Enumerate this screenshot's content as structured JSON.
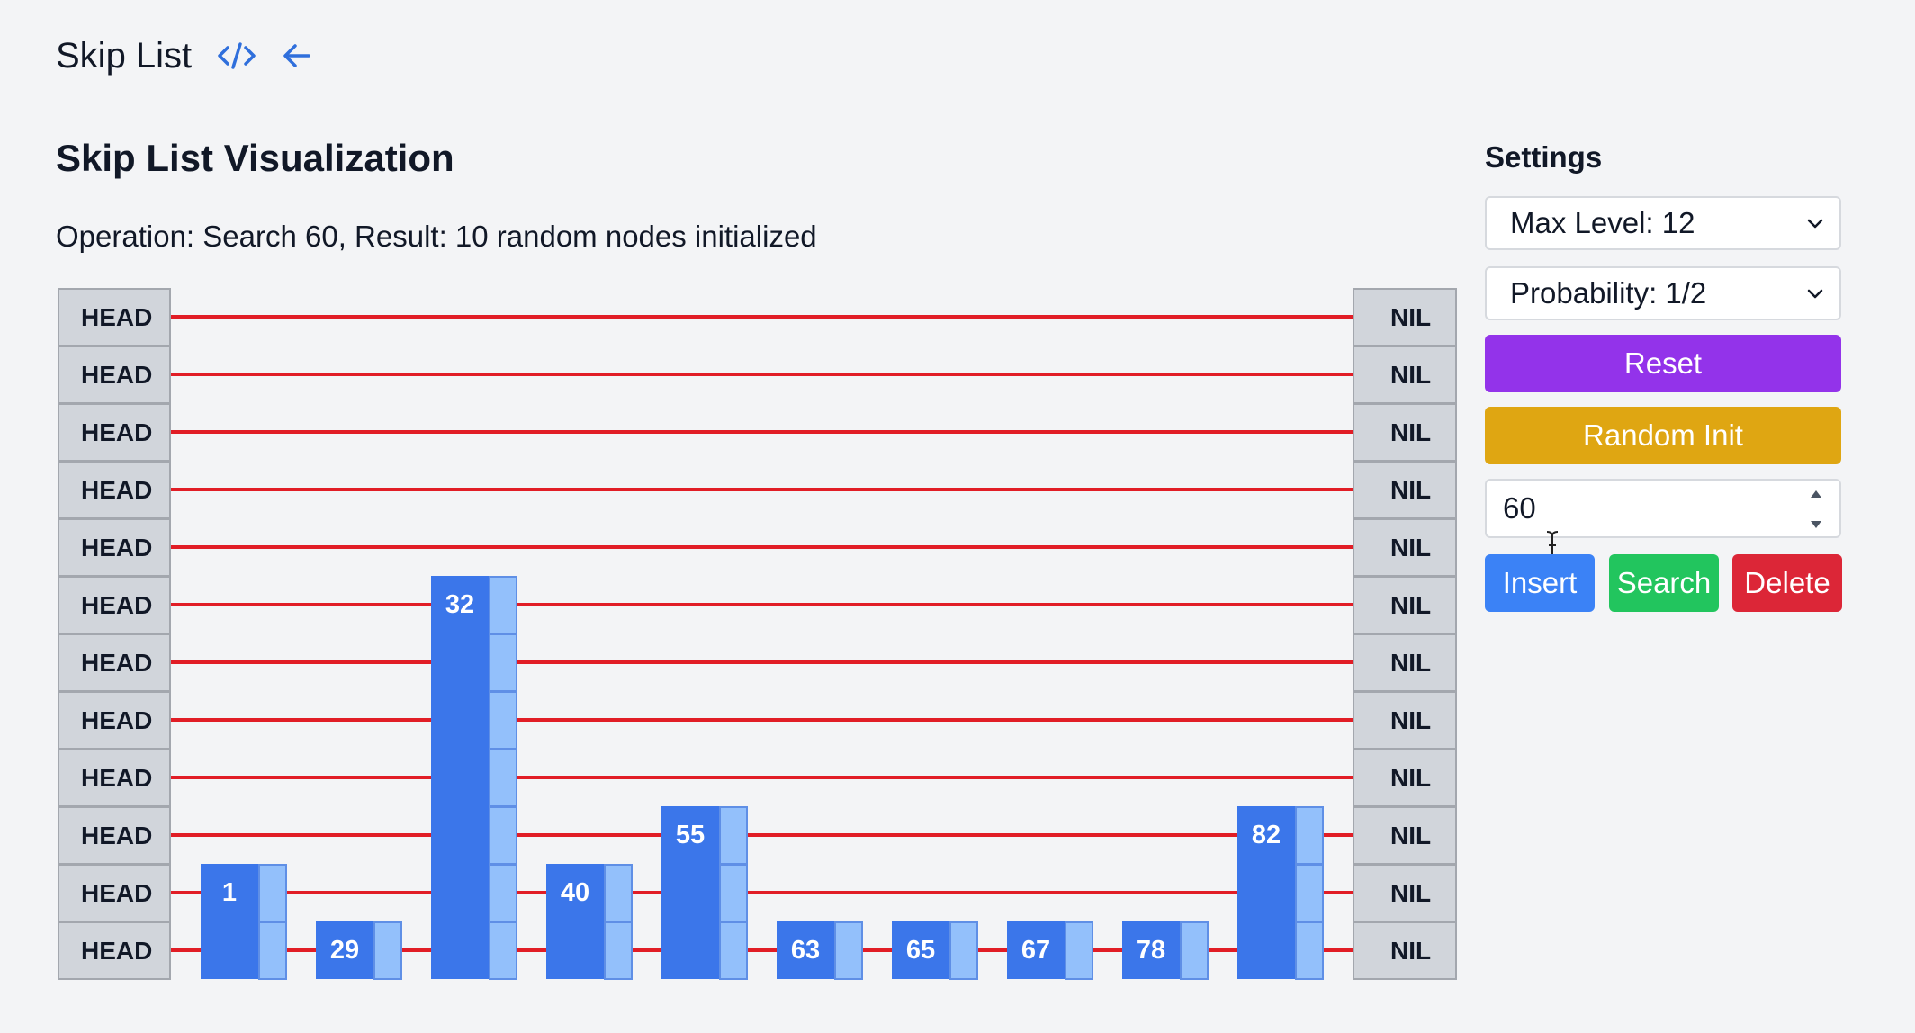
{
  "header": {
    "title": "Skip List",
    "code_icon": "code-icon",
    "back_icon": "arrow-left-icon",
    "accent_color": "#2f6fdc"
  },
  "visualization": {
    "title": "Skip List Visualization",
    "operation_text": "Operation: Search 60, Result: 10 random nodes initialized",
    "levels": 12,
    "head_label": "HEAD",
    "nil_label": "NIL",
    "nodes": [
      {
        "key": "1",
        "height": 2
      },
      {
        "key": "29",
        "height": 1
      },
      {
        "key": "32",
        "height": 7
      },
      {
        "key": "40",
        "height": 2
      },
      {
        "key": "55",
        "height": 3
      },
      {
        "key": "63",
        "height": 1
      },
      {
        "key": "65",
        "height": 1
      },
      {
        "key": "67",
        "height": 1
      },
      {
        "key": "78",
        "height": 1
      },
      {
        "key": "82",
        "height": 3
      }
    ],
    "colors": {
      "node": "#3b76ea",
      "pointer": "#93c0fb",
      "link": "#e11d26",
      "sentinel": "#d1d5db"
    }
  },
  "settings": {
    "title": "Settings",
    "max_level_select": "Max Level: 12",
    "probability_select": "Probability: 1/2",
    "reset_label": "Reset",
    "random_init_label": "Random Init",
    "value_input": "60",
    "insert_label": "Insert",
    "search_label": "Search",
    "delete_label": "Delete",
    "colors": {
      "reset": "#9333ea",
      "random_init": "#dfa612",
      "insert": "#3b82f6",
      "search": "#22c55e",
      "delete": "#dc2637"
    }
  }
}
